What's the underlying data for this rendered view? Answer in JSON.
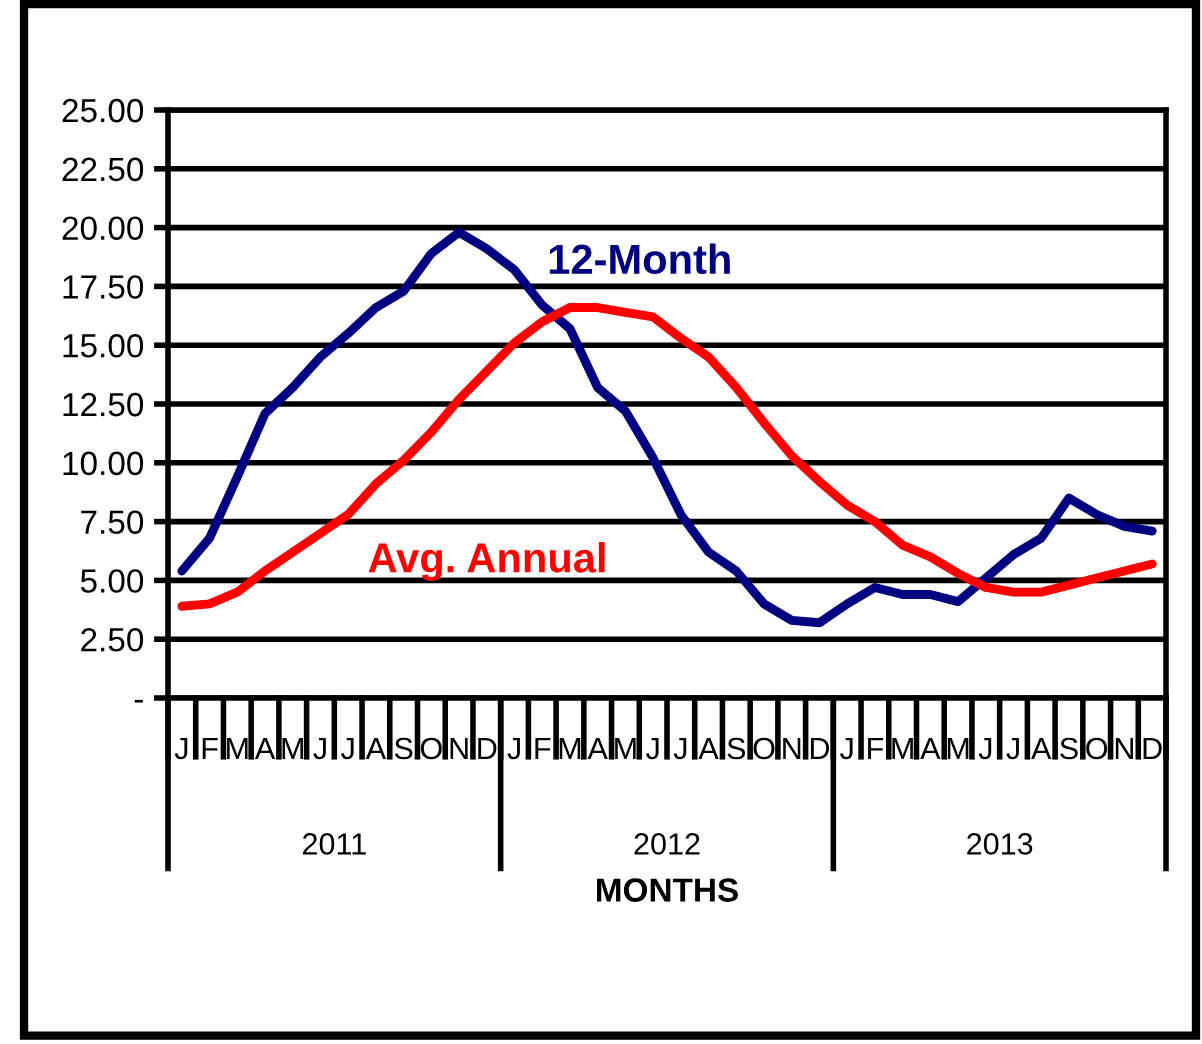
{
  "chart_data": {
    "type": "line",
    "xlabel": "MONTHS",
    "categories": [
      "J",
      "F",
      "M",
      "A",
      "M",
      "J",
      "J",
      "A",
      "S",
      "O",
      "N",
      "D",
      "J",
      "F",
      "M",
      "A",
      "M",
      "J",
      "J",
      "A",
      "S",
      "O",
      "N",
      "D",
      "J",
      "F",
      "M",
      "A",
      "M",
      "J",
      "J",
      "A",
      "S",
      "O",
      "N",
      "D"
    ],
    "series": [
      {
        "name": "12-Month",
        "color": "#000080",
        "values": [
          5.4,
          6.8,
          9.4,
          12.1,
          13.2,
          14.5,
          15.5,
          16.6,
          17.3,
          18.9,
          19.8,
          19.1,
          18.2,
          16.7,
          15.7,
          13.2,
          12.2,
          10.2,
          7.8,
          6.2,
          5.4,
          4.0,
          3.3,
          3.2,
          4.0,
          4.7,
          4.4,
          4.4,
          4.1,
          5.1,
          6.1,
          6.8,
          8.5,
          7.8,
          7.3,
          7.1
        ]
      },
      {
        "name": "Avg. Annual",
        "color": "#ff0000",
        "values": [
          3.9,
          4.0,
          4.5,
          5.4,
          6.2,
          7.0,
          7.8,
          9.1,
          10.1,
          11.3,
          12.7,
          13.9,
          15.1,
          16.0,
          16.6,
          16.6,
          16.4,
          16.2,
          15.3,
          14.5,
          13.2,
          11.7,
          10.3,
          9.2,
          8.2,
          7.5,
          6.5,
          6.0,
          5.3,
          4.7,
          4.5,
          4.5,
          4.8,
          5.1,
          5.4,
          5.7
        ]
      }
    ],
    "ylim": [
      0,
      25
    ],
    "yticks": [
      {
        "value": 0,
        "label": "-"
      },
      {
        "value": 2.5,
        "label": "2.50"
      },
      {
        "value": 5,
        "label": "5.00"
      },
      {
        "value": 7.5,
        "label": "7.50"
      },
      {
        "value": 10,
        "label": "10.00"
      },
      {
        "value": 12.5,
        "label": "12.50"
      },
      {
        "value": 15,
        "label": "15.00"
      },
      {
        "value": 17.5,
        "label": "17.50"
      },
      {
        "value": 20,
        "label": "20.00"
      },
      {
        "value": 22.5,
        "label": "22.50"
      },
      {
        "value": 25,
        "label": "25.00"
      }
    ],
    "grid": "y",
    "marker": "none",
    "line_style": "solid",
    "legend": false,
    "annotations": [
      "2011",
      "2012",
      "2013"
    ]
  }
}
